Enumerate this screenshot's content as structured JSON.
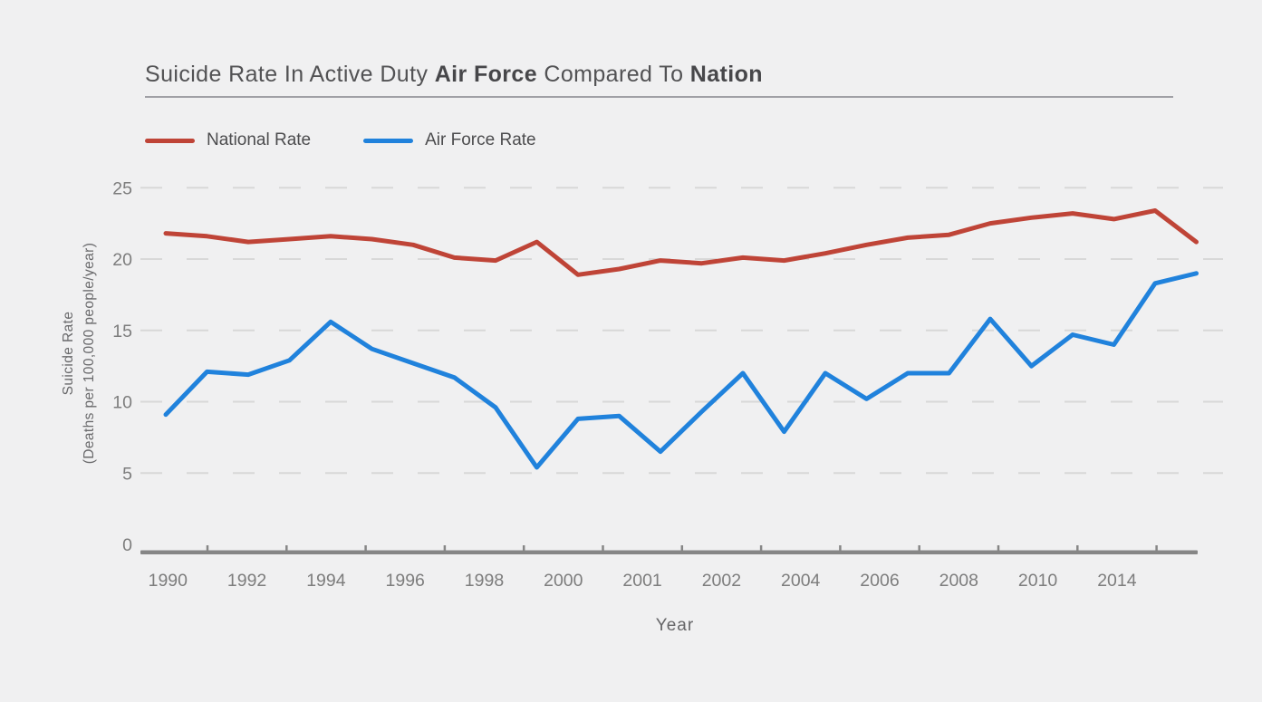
{
  "title": {
    "part1": "Suicide Rate In Active Duty ",
    "part2": "Air Force",
    "part3": " Compared To ",
    "part4": "Nation"
  },
  "legend": [
    {
      "label": "National Rate",
      "color": "#bf4437"
    },
    {
      "label": "Air Force Rate",
      "color": "#2082dc"
    }
  ],
  "chart_data": {
    "type": "line",
    "title": "Suicide Rate In Active Duty Air Force Compared To Nation",
    "xlabel": "Year",
    "ylabel_line1": "Suicide Rate",
    "ylabel_line2": "(Deaths per 100,000 people/year)",
    "x": [
      1990,
      1991,
      1992,
      1993,
      1994,
      1995,
      1996,
      1997,
      1998,
      1999,
      2000,
      2001,
      2002,
      2003,
      2004,
      2005,
      2006,
      2007,
      2008,
      2009,
      2010,
      2011,
      2012,
      2013,
      2014,
      2015
    ],
    "series": [
      {
        "name": "National Rate",
        "color": "#bf4437",
        "values": [
          21.8,
          21.6,
          21.2,
          21.4,
          21.6,
          21.4,
          21.0,
          20.1,
          19.9,
          21.2,
          18.9,
          19.3,
          19.9,
          19.7,
          20.1,
          19.9,
          20.4,
          21.0,
          21.5,
          21.7,
          22.5,
          22.9,
          23.2,
          22.8,
          23.4,
          21.2
        ]
      },
      {
        "name": "Air Force Rate",
        "color": "#2082dc",
        "values": [
          9.1,
          12.1,
          11.9,
          12.9,
          15.6,
          13.7,
          12.7,
          11.7,
          9.6,
          5.4,
          8.8,
          9.0,
          6.5,
          9.3,
          12.0,
          7.9,
          12.0,
          10.2,
          12.0,
          12.0,
          15.8,
          12.5,
          14.7,
          14.0,
          18.3,
          19.0
        ]
      }
    ],
    "x_tick_labels": [
      "1990",
      "1992",
      "1994",
      "1996",
      "1998",
      "2000",
      "2001",
      "2002",
      "2004",
      "2006",
      "2008",
      "2010",
      "2014"
    ],
    "y_ticks": [
      0,
      5,
      10,
      15,
      20,
      25
    ],
    "ylim": [
      0,
      25.6
    ],
    "grid": "horizontal-dashed",
    "legend_position": "top-left",
    "colors": {
      "background": "#f0f0f1",
      "axis_line": "#868686",
      "gridline": "#d8d8d8",
      "tick_label": "#7d7d7d"
    }
  }
}
